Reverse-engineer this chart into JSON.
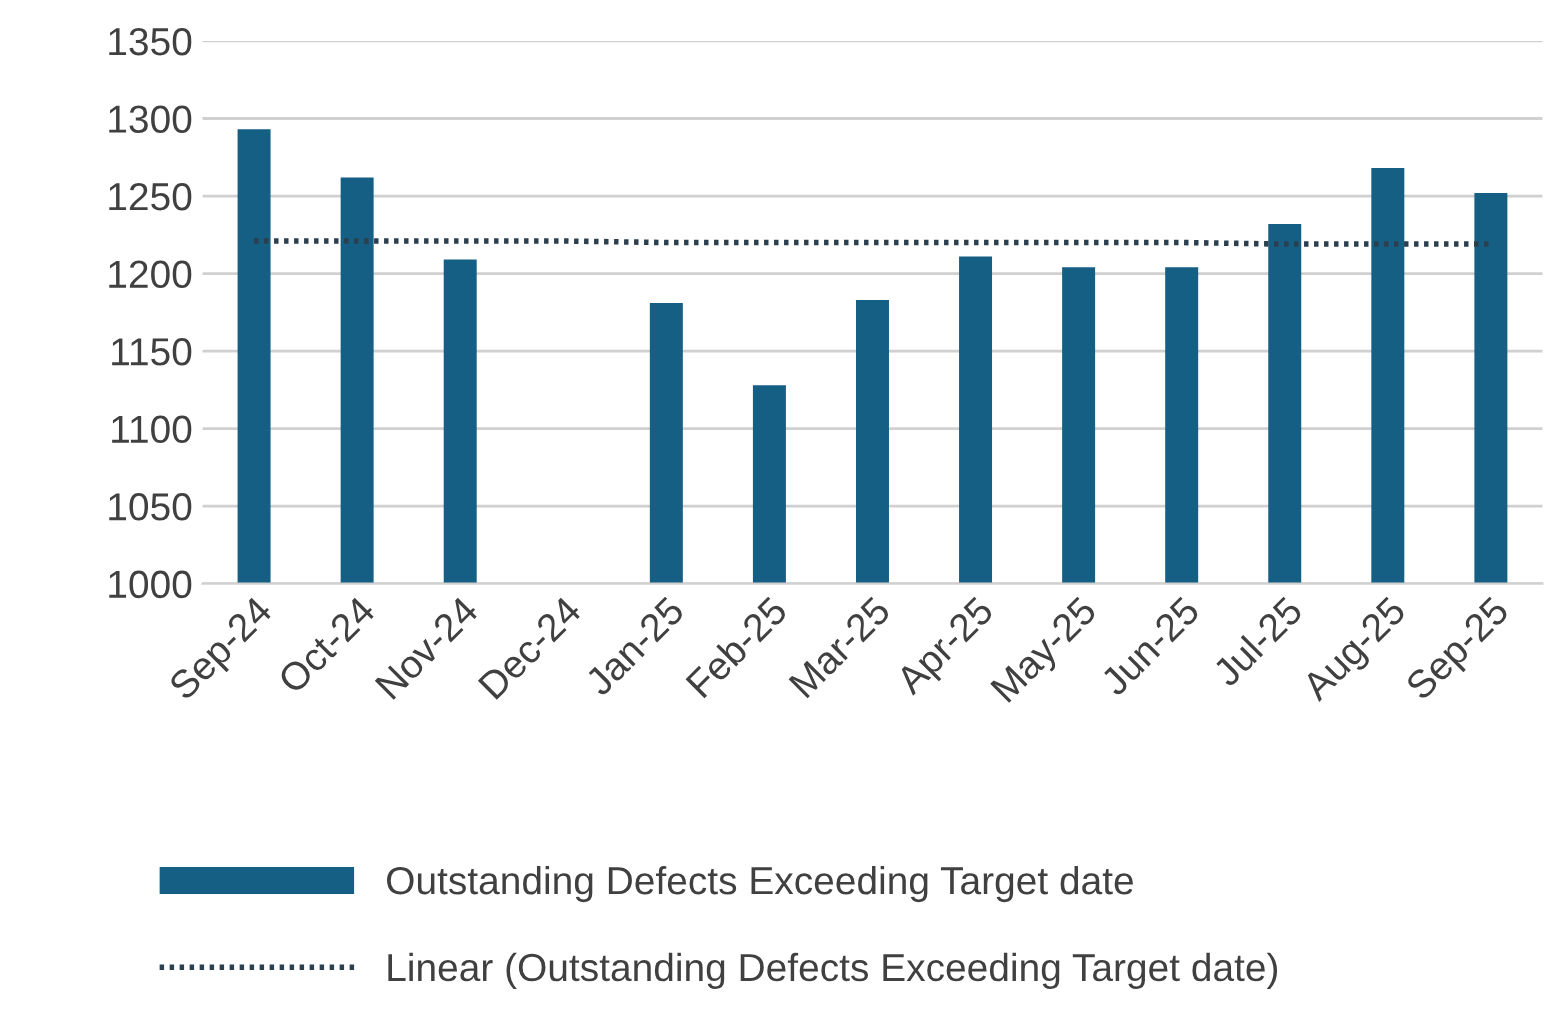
{
  "chart_data": {
    "type": "bar",
    "categories": [
      "Sep-24",
      "Oct-24",
      "Nov-24",
      "Dec-24",
      "Jan-25",
      "Feb-25",
      "Mar-25",
      "Apr-25",
      "May-25",
      "Jun-25",
      "Jul-25",
      "Aug-25",
      "Sep-25"
    ],
    "series": [
      {
        "name": "Outstanding Defects Exceeding Target date",
        "color": "#155e84",
        "values": [
          1293,
          1262,
          1209,
          null,
          1181,
          1128,
          1183,
          1211,
          1204,
          1204,
          1232,
          1268,
          1252
        ]
      },
      {
        "name": "Linear (Outstanding Defects Exceeding Target date)",
        "type": "line",
        "color": "#2b3f4f",
        "line_style": "dotted",
        "values": [
          1221,
          1221,
          1221,
          1221,
          1220,
          1220,
          1220,
          1220,
          1220,
          1220,
          1219,
          1219,
          1219
        ]
      }
    ],
    "ylim": [
      1000,
      1350
    ],
    "yticks": [
      1000,
      1050,
      1100,
      1150,
      1200,
      1250,
      1300,
      1350
    ],
    "grid": "y",
    "legend": "bottom",
    "marker": "none"
  }
}
